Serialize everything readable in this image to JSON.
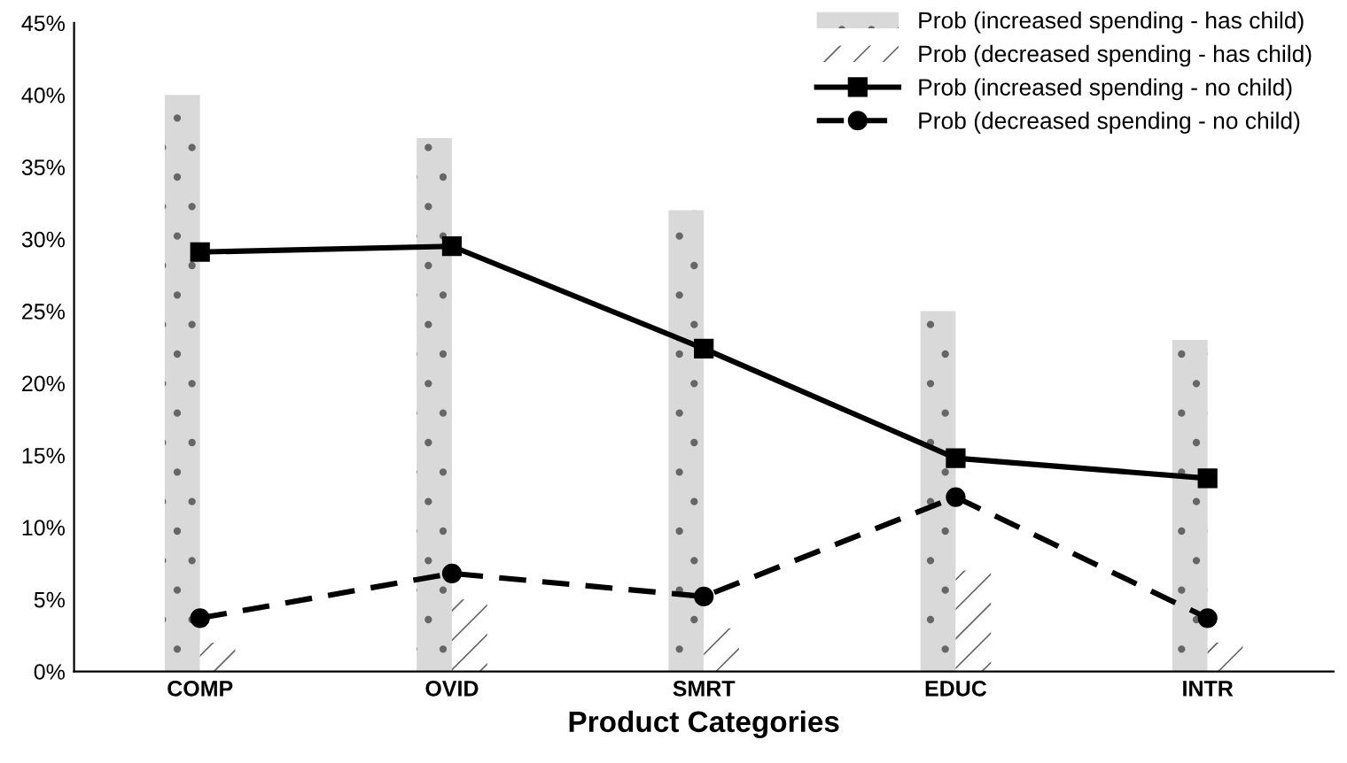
{
  "chart_data": {
    "type": "bar",
    "xlabel": "Product Categories",
    "categories": [
      "COMP",
      "OVID",
      "SMRT",
      "EDUC",
      "INTR"
    ],
    "series": [
      {
        "name": "Prob (increased spending - has child)",
        "color": "#d9d9d9",
        "values": [
          40,
          37,
          32,
          25,
          23
        ]
      },
      {
        "name": "Prob (decreased spending - has child)",
        "color": "#ffffff",
        "values": [
          2,
          5,
          3,
          7,
          2
        ]
      },
      {
        "name": "Prob (increased spending - no child)",
        "type": "line",
        "color": "#000000",
        "marker": "square",
        "line_style": "solid",
        "values": [
          29.1,
          29.5,
          22.4,
          14.8,
          13.4
        ]
      },
      {
        "name": "Prob (decreased spending - no child)",
        "type": "line",
        "color": "#000000",
        "marker": "circle",
        "line_style": "dashed",
        "values": [
          3.7,
          6.8,
          5.2,
          12.1,
          3.7
        ]
      }
    ],
    "ylim": [
      0,
      45
    ],
    "yticks": [
      {
        "value": 0,
        "label": "0%"
      },
      {
        "value": 5,
        "label": "5%"
      },
      {
        "value": 10,
        "label": "10%"
      },
      {
        "value": 15,
        "label": "15%"
      },
      {
        "value": 20,
        "label": "20%"
      },
      {
        "value": 25,
        "label": "25%"
      },
      {
        "value": 30,
        "label": "30%"
      },
      {
        "value": 35,
        "label": "35%"
      },
      {
        "value": 40,
        "label": "40%"
      },
      {
        "value": 45,
        "label": "45%"
      }
    ],
    "grid": false,
    "legend": "top right"
  }
}
